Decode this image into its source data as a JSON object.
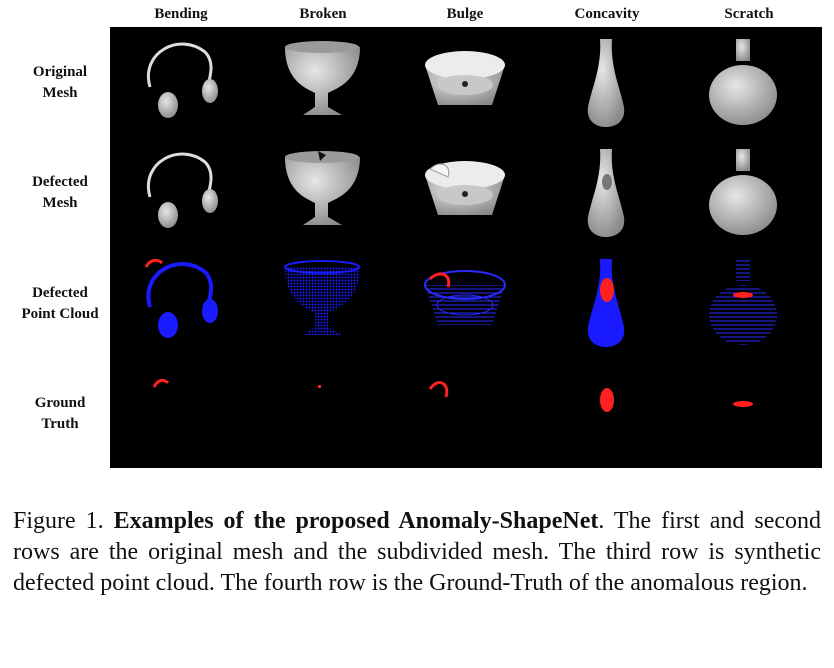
{
  "columns": [
    "Bending",
    "Broken",
    "Bulge",
    "Concavity",
    "Scratch"
  ],
  "rows": [
    {
      "line1": "Original",
      "line2": "Mesh"
    },
    {
      "line1": "Defected",
      "line2": "Mesh"
    },
    {
      "line1": "Defected",
      "line2": "Point Cloud"
    },
    {
      "line1": "Ground",
      "line2": "Truth"
    }
  ],
  "caption": {
    "label": "Figure 1.",
    "title": "Examples of the proposed Anomaly-ShapeNet",
    "body": ". The first and second rows are the original mesh and the subdivided mesh. The third row is synthetic defected point cloud. The fourth row is the Ground-Truth of the anomalous region."
  },
  "colors": {
    "mesh": "#bdbdbd",
    "points": "#1a1aff",
    "anomaly": "#ff2020",
    "background": "#000000"
  }
}
